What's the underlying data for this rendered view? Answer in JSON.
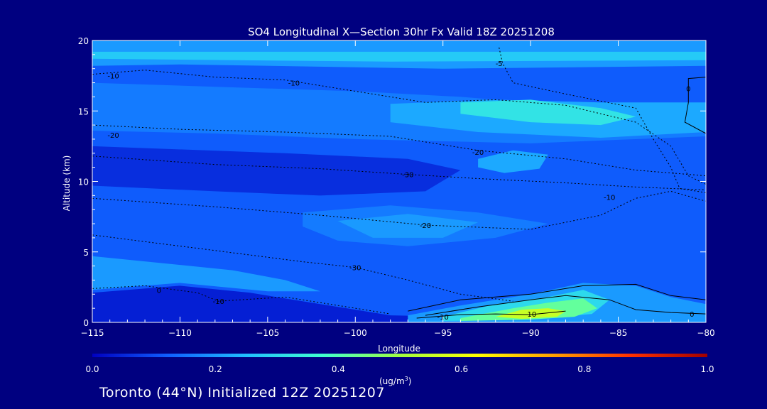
{
  "chart_data": {
    "type": "heatmap",
    "title": "SO4 Longitudinal X—Section 30hr  Fx Valid 18Z 20251208",
    "xlabel": "Longitude",
    "ylabel": "Altitude (km)",
    "xlim": [
      -115,
      -80
    ],
    "ylim": [
      0,
      20
    ],
    "x_ticks": [
      -115,
      -110,
      -105,
      -100,
      -95,
      -90,
      -85,
      -80
    ],
    "x_tick_labels": [
      "−115",
      "−110",
      "−105",
      "−100",
      "−95",
      "−90",
      "−85",
      "−80"
    ],
    "y_ticks": [
      0,
      5,
      10,
      15,
      20
    ],
    "y_tick_labels": [
      "0",
      "5",
      "10",
      "15",
      "20"
    ],
    "colorbar": {
      "unit": "(ug/m",
      "unit_sup": "3",
      "unit_close": ")",
      "range": [
        0.0,
        1.0
      ],
      "ticks": [
        "0.0",
        "0.2",
        "0.4",
        "0.6",
        "0.8",
        "1.0"
      ],
      "colors": [
        "#0000c0",
        "#1060ff",
        "#20c0ff",
        "#40ffd0",
        "#a0ff40",
        "#ffff00",
        "#ffa000",
        "#ff3000",
        "#a00000"
      ]
    },
    "contour_labels": [
      {
        "text": "-10",
        "lon": -113.8,
        "alt": 17.5
      },
      {
        "text": "-10",
        "lon": -103.5,
        "alt": 17.0
      },
      {
        "text": "-5",
        "lon": -91.8,
        "alt": 18.4
      },
      {
        "text": "0",
        "lon": -81.0,
        "alt": 16.6
      },
      {
        "text": "-20",
        "lon": -113.8,
        "alt": 13.3
      },
      {
        "text": "-20",
        "lon": -93.0,
        "alt": 12.1
      },
      {
        "text": "-30",
        "lon": -97.0,
        "alt": 10.5
      },
      {
        "text": "-20",
        "lon": -96.0,
        "alt": 6.9
      },
      {
        "text": "-10",
        "lon": -85.5,
        "alt": 8.9
      },
      {
        "text": "-30",
        "lon": -100.0,
        "alt": 3.9
      },
      {
        "text": "-10",
        "lon": -107.8,
        "alt": 1.5
      },
      {
        "text": "0",
        "lon": -111.2,
        "alt": 2.3
      },
      {
        "text": "-10",
        "lon": -95.0,
        "alt": 0.4
      },
      {
        "text": "-10",
        "lon": -90.0,
        "alt": 0.6
      },
      {
        "text": "0",
        "lon": -80.8,
        "alt": 0.6
      }
    ],
    "filled_levels": [
      {
        "value": 0.12,
        "pts": [
          [
            -115,
            20
          ],
          [
            -80,
            20
          ],
          [
            -80,
            0
          ],
          [
            -115,
            0
          ]
        ]
      },
      {
        "value": 0.2,
        "pts": [
          [
            -115,
            20
          ],
          [
            -80,
            20
          ],
          [
            -80,
            18.2
          ],
          [
            -95,
            18.0
          ],
          [
            -110,
            18.3
          ],
          [
            -115,
            18.2
          ]
        ]
      },
      {
        "value": 0.27,
        "pts": [
          [
            -115,
            19.2
          ],
          [
            -80,
            19.2
          ],
          [
            -80,
            18.6
          ],
          [
            -98,
            18.5
          ],
          [
            -115,
            18.7
          ]
        ]
      },
      {
        "value": 0.16,
        "pts": [
          [
            -115,
            17.0
          ],
          [
            -100,
            16.4
          ],
          [
            -94,
            16.0
          ],
          [
            -88,
            15.4
          ],
          [
            -80,
            15.2
          ],
          [
            -80,
            13.2
          ],
          [
            -90,
            12.7
          ],
          [
            -100,
            13.0
          ],
          [
            -108,
            13.4
          ],
          [
            -115,
            13.6
          ]
        ]
      },
      {
        "value": 0.22,
        "pts": [
          [
            -98,
            15.5
          ],
          [
            -92,
            15.8
          ],
          [
            -86,
            15.6
          ],
          [
            -80,
            15.6
          ],
          [
            -80,
            13.5
          ],
          [
            -86,
            13.1
          ],
          [
            -93,
            13.5
          ],
          [
            -98,
            14.2
          ]
        ]
      },
      {
        "value": 0.32,
        "pts": [
          [
            -94,
            15.6
          ],
          [
            -90,
            15.8
          ],
          [
            -86,
            15.2
          ],
          [
            -84,
            14.6
          ],
          [
            -86,
            14.0
          ],
          [
            -90,
            14.2
          ],
          [
            -94,
            14.8
          ]
        ]
      },
      {
        "value": 0.22,
        "pts": [
          [
            -93,
            11.6
          ],
          [
            -91,
            12.2
          ],
          [
            -89,
            11.9
          ],
          [
            -89.5,
            10.9
          ],
          [
            -91.5,
            10.6
          ],
          [
            -93,
            11.0
          ]
        ]
      },
      {
        "value": 0.06,
        "pts": [
          [
            -115,
            12.5
          ],
          [
            -104,
            12.0
          ],
          [
            -97,
            11.6
          ],
          [
            -94,
            10.8
          ],
          [
            -96,
            9.3
          ],
          [
            -102,
            9.0
          ],
          [
            -108,
            9.3
          ],
          [
            -115,
            9.7
          ]
        ]
      },
      {
        "value": 0.16,
        "pts": [
          [
            -103,
            7.8
          ],
          [
            -98,
            8.3
          ],
          [
            -93,
            7.8
          ],
          [
            -89,
            7.0
          ],
          [
            -92,
            6.0
          ],
          [
            -97,
            5.4
          ],
          [
            -101,
            5.8
          ],
          [
            -103,
            6.8
          ]
        ]
      },
      {
        "value": 0.2,
        "pts": [
          [
            -101,
            7.2
          ],
          [
            -97,
            7.7
          ],
          [
            -93,
            7.1
          ],
          [
            -95,
            6.0
          ],
          [
            -99,
            6.0
          ]
        ]
      },
      {
        "value": 0.2,
        "pts": [
          [
            -115,
            4.7
          ],
          [
            -111,
            4.2
          ],
          [
            -107,
            3.7
          ],
          [
            -104,
            3.0
          ],
          [
            -102,
            2.2
          ],
          [
            -105,
            2.2
          ],
          [
            -110,
            2.8
          ],
          [
            -115,
            2.3
          ]
        ]
      },
      {
        "value": 0.04,
        "pts": [
          [
            -115,
            2.1
          ],
          [
            -110,
            2.6
          ],
          [
            -106,
            2.1
          ],
          [
            -102,
            1.3
          ],
          [
            -98,
            0.5
          ],
          [
            -94,
            0.4
          ],
          [
            -88,
            0.5
          ],
          [
            -84,
            0.4
          ],
          [
            -80,
            0.5
          ],
          [
            -80,
            0
          ],
          [
            -115,
            0
          ]
        ]
      },
      {
        "value": 0.2,
        "pts": [
          [
            -97,
            0.5
          ],
          [
            -94,
            1.2
          ],
          [
            -90,
            2.0
          ],
          [
            -87,
            2.8
          ],
          [
            -84,
            2.6
          ],
          [
            -82,
            1.8
          ],
          [
            -80,
            1.3
          ],
          [
            -80,
            0
          ],
          [
            -97,
            0
          ]
        ]
      },
      {
        "value": 0.3,
        "pts": [
          [
            -95,
            0.4
          ],
          [
            -92,
            1.3
          ],
          [
            -89,
            1.8
          ],
          [
            -87,
            2.3
          ],
          [
            -85.5,
            1.6
          ],
          [
            -86.5,
            0.6
          ],
          [
            -90,
            0.2
          ],
          [
            -95,
            0.1
          ]
        ]
      },
      {
        "value": 0.42,
        "pts": [
          [
            -94,
            0.3
          ],
          [
            -91,
            1.0
          ],
          [
            -89,
            1.4
          ],
          [
            -87,
            1.7
          ],
          [
            -86.2,
            1.0
          ],
          [
            -87.5,
            0.4
          ],
          [
            -90,
            0.2
          ],
          [
            -94,
            0.1
          ]
        ]
      },
      {
        "value": 0.55,
        "pts": [
          [
            -92,
            0.4
          ],
          [
            -90.5,
            0.9
          ],
          [
            -89,
            1.0
          ],
          [
            -88,
            0.8
          ],
          [
            -88.5,
            0.4
          ],
          [
            -90.5,
            0.25
          ]
        ]
      }
    ]
  },
  "footer": {
    "location": "Toronto (44°N) Initialized 12Z 20251207"
  }
}
